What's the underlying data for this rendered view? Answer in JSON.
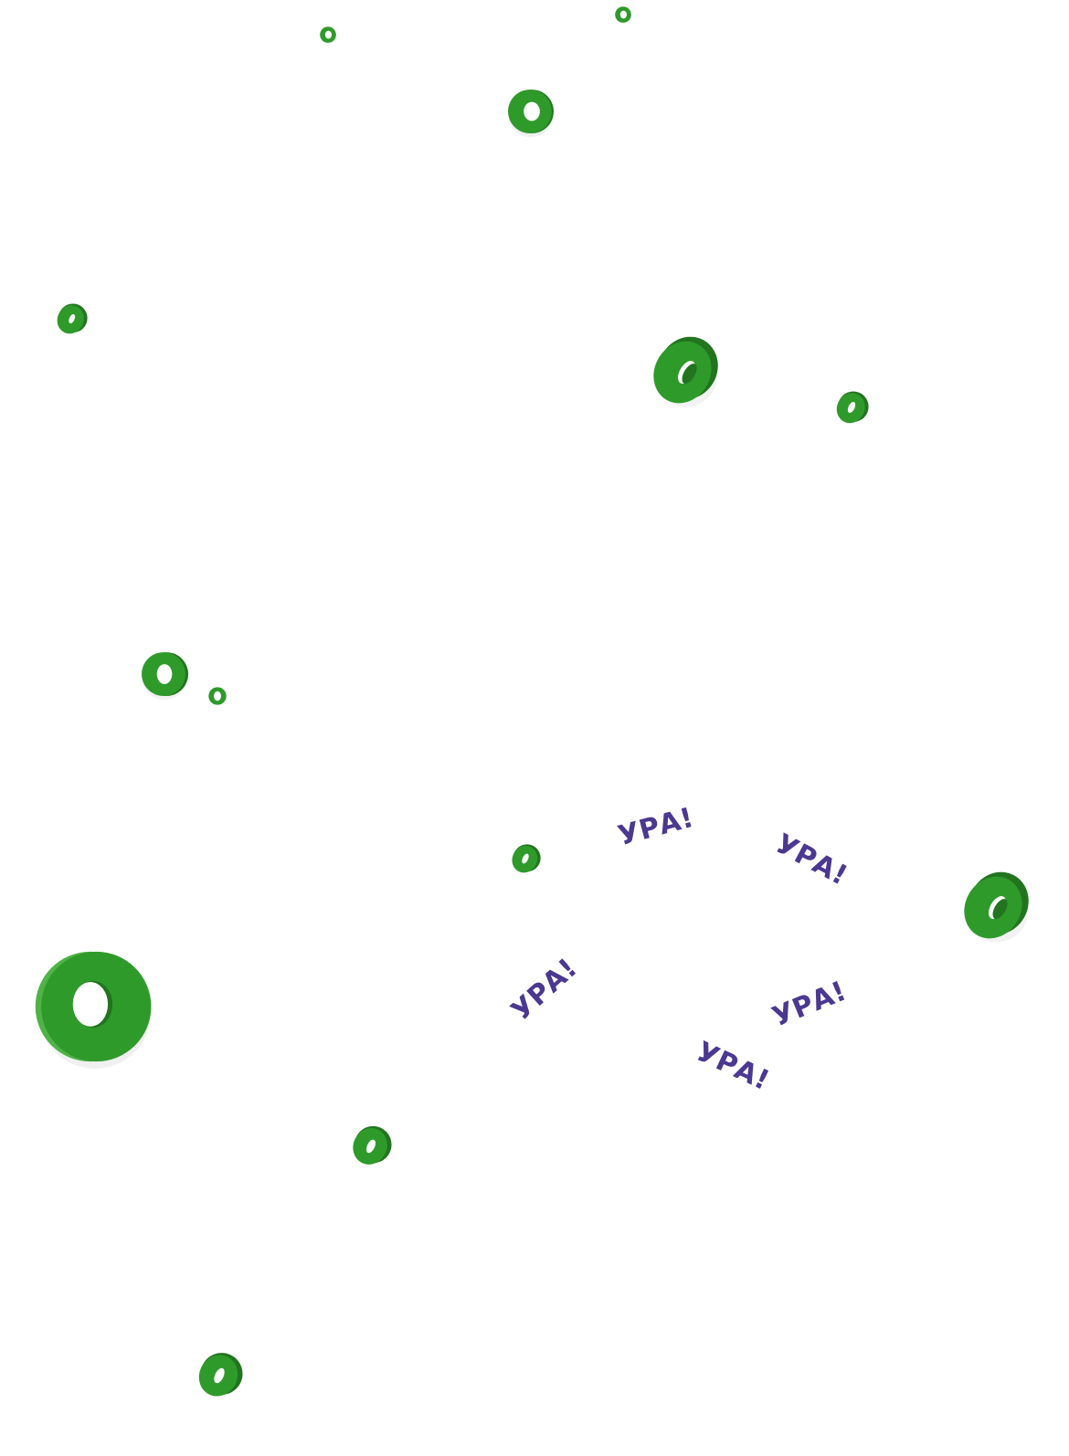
{
  "colors": {
    "ring_main": "#2e9a2a",
    "ring_dark": "#22741f",
    "ring_light": "#4fb347",
    "cheer_text": "#4a3891",
    "background": "#ffffff"
  },
  "icons": {
    "ring": "green-ring-icon"
  },
  "celebration": {
    "cheers": [
      "УРА!",
      "УРА!",
      "УРА!",
      "УРА!",
      "УРА!"
    ]
  }
}
